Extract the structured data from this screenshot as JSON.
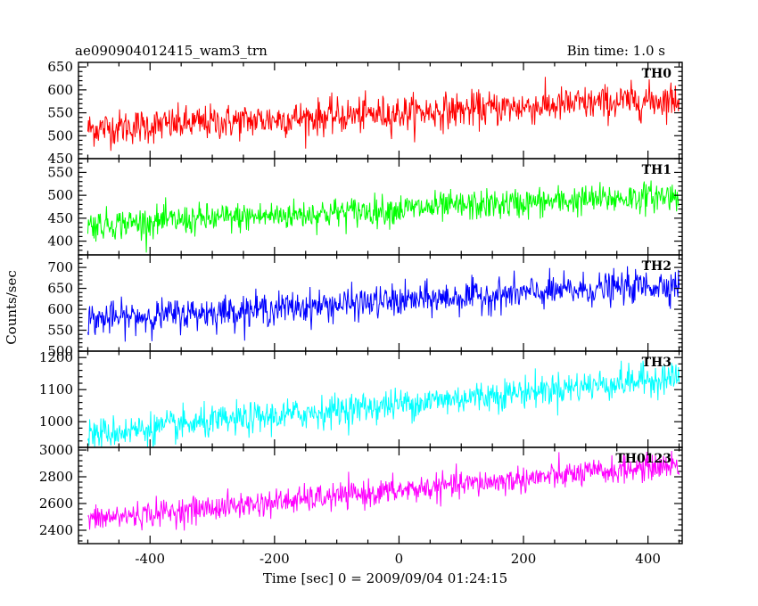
{
  "header": {
    "title": "ae090904012415_wam3_trn",
    "bin_time": "Bin time: 1.0 s"
  },
  "chart_data": {
    "type": "line",
    "xlabel": "Time [sec] 0 = 2009/09/04 01:24:15",
    "ylabel": "Counts/sec",
    "xlim": [
      -515,
      455
    ],
    "x_ticks": [
      -400,
      -200,
      0,
      200,
      400
    ],
    "x_range": [
      -500,
      450
    ],
    "bin_time_s": 1.0,
    "panels": [
      {
        "name": "TH0",
        "color": "#ff0000",
        "ylim": [
          450,
          660
        ],
        "y_ticks": [
          450,
          500,
          550,
          600,
          650
        ],
        "trend": [
          [
            -500,
            515
          ],
          [
            450,
            580
          ]
        ],
        "noise": 35
      },
      {
        "name": "TH1",
        "color": "#00ff00",
        "ylim": [
          370,
          580
        ],
        "y_ticks": [
          400,
          450,
          500,
          550
        ],
        "trend": [
          [
            -500,
            435
          ],
          [
            450,
            500
          ]
        ],
        "noise": 30
      },
      {
        "name": "TH2",
        "color": "#0000ff",
        "ylim": [
          500,
          730
        ],
        "y_ticks": [
          500,
          550,
          600,
          650,
          700
        ],
        "trend": [
          [
            -500,
            575
          ],
          [
            450,
            660
          ]
        ],
        "noise": 35
      },
      {
        "name": "TH3",
        "color": "#00ffff",
        "ylim": [
          920,
          1220
        ],
        "y_ticks": [
          1000,
          1100,
          1200
        ],
        "trend": [
          [
            -500,
            960
          ],
          [
            450,
            1140
          ]
        ],
        "noise": 45
      },
      {
        "name": "TH0123",
        "color": "#ff00ff",
        "ylim": [
          2300,
          3020
        ],
        "y_ticks": [
          2400,
          2600,
          2800,
          3000
        ],
        "trend": [
          [
            -500,
            2480
          ],
          [
            450,
            2890
          ]
        ],
        "noise": 90
      }
    ]
  }
}
